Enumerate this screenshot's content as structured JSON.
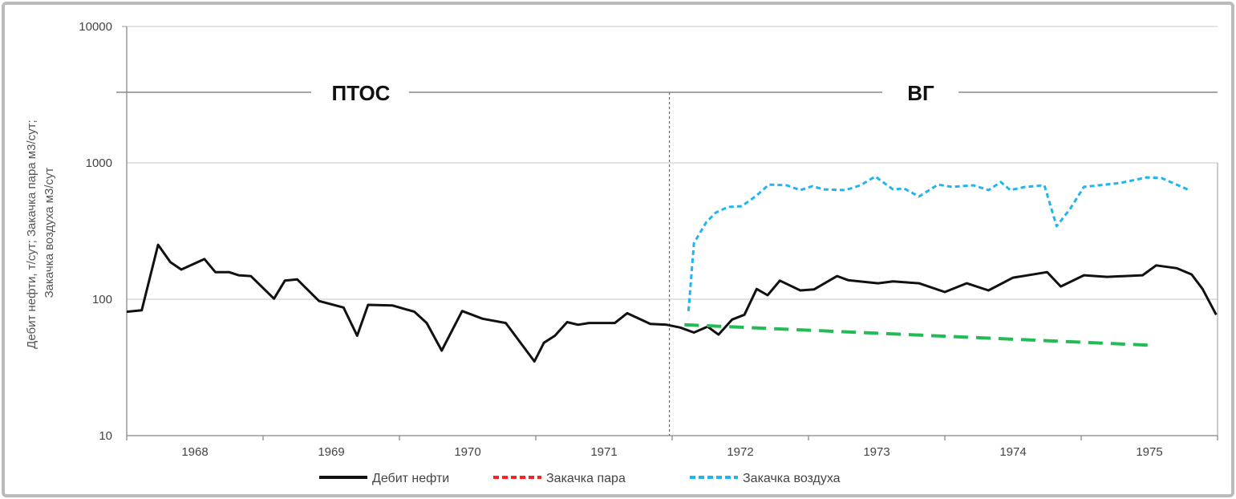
{
  "chart_data": {
    "type": "line",
    "title": "",
    "xlabel": "",
    "ylabel_lines": [
      "Дебит нефти, т/сут; Закачка пара м3/сут;",
      "Закачка воздуха м3/сут"
    ],
    "yscale": "log",
    "ylim": [
      10,
      10000
    ],
    "yticks": [
      "10",
      "100",
      "1000",
      "10000"
    ],
    "xlim": [
      1968,
      1976
    ],
    "xticks": [
      "1968",
      "1969",
      "1970",
      "1971",
      "1972",
      "1973",
      "1974",
      "1975"
    ],
    "grid": "horizontal",
    "legend_placement": "bottom",
    "phases": [
      {
        "label": "ПТОС",
        "from": 1968,
        "to": 1971.98
      },
      {
        "label": "ВГ",
        "from": 1971.98,
        "to": 1976
      }
    ],
    "phase_divider_year": 1971.98,
    "series": [
      {
        "name": "Дебит нефти",
        "color": "#111111",
        "style": "solid",
        "in_legend": true,
        "x": [
          1968.0,
          1968.11,
          1968.23,
          1968.32,
          1968.4,
          1968.57,
          1968.65,
          1968.75,
          1968.82,
          1968.91,
          1969.08,
          1969.16,
          1969.25,
          1969.41,
          1969.59,
          1969.69,
          1969.77,
          1969.95,
          1970.11,
          1970.2,
          1970.31,
          1970.46,
          1970.61,
          1970.78,
          1970.99,
          1971.06,
          1971.14,
          1971.23,
          1971.31,
          1971.39,
          1971.58,
          1971.67,
          1971.84,
          1971.96,
          1972.06,
          1972.16,
          1972.26,
          1972.34,
          1972.44,
          1972.53,
          1972.62,
          1972.7,
          1972.79,
          1972.94,
          1973.04,
          1973.21,
          1973.29,
          1973.51,
          1973.62,
          1973.81,
          1974.0,
          1974.16,
          1974.32,
          1974.5,
          1974.75,
          1974.85,
          1975.02,
          1975.19,
          1975.45,
          1975.55,
          1975.7,
          1975.81,
          1975.89,
          1975.99
        ],
        "values": [
          81,
          83,
          251,
          187,
          165,
          197,
          158,
          158,
          150,
          148,
          101,
          137,
          140,
          97,
          87,
          54,
          91,
          90,
          81,
          67,
          42,
          82,
          72,
          67,
          35,
          48,
          54,
          68,
          65,
          67,
          67,
          79,
          66,
          65,
          62,
          57,
          63,
          55,
          71,
          77,
          119,
          107,
          137,
          116,
          118,
          148,
          138,
          131,
          135,
          131,
          113,
          131,
          116,
          144,
          158,
          124,
          150,
          146,
          150,
          177,
          169,
          152,
          119,
          77
        ]
      },
      {
        "name": "Закачка пара",
        "color": "#ff2020",
        "style": "dashed",
        "in_legend": true,
        "x": [],
        "values": []
      },
      {
        "name": "Закачка воздуха",
        "color": "#22b4f0",
        "style": "dashed",
        "in_legend": true,
        "x": [
          1972.12,
          1972.16,
          1972.25,
          1972.32,
          1972.41,
          1972.51,
          1972.61,
          1972.71,
          1972.84,
          1972.94,
          1973.03,
          1973.11,
          1973.27,
          1973.38,
          1973.49,
          1973.62,
          1973.7,
          1973.81,
          1973.95,
          1974.05,
          1974.21,
          1974.32,
          1974.41,
          1974.48,
          1974.59,
          1974.73,
          1974.82,
          1974.92,
          1975.02,
          1975.13,
          1975.29,
          1975.48,
          1975.59,
          1975.78
        ],
        "values": [
          82,
          258,
          367,
          432,
          475,
          481,
          566,
          693,
          684,
          631,
          675,
          639,
          631,
          684,
          794,
          639,
          649,
          566,
          693,
          667,
          684,
          631,
          723,
          631,
          667,
          684,
          343,
          462,
          667,
          684,
          713,
          783,
          773,
          639
        ]
      },
      {
        "name": "trend",
        "color": "#22bb55",
        "style": "long-dash",
        "in_legend": false,
        "x": [
          1972.09,
          1975.5
        ],
        "values": [
          65,
          46
        ]
      }
    ]
  }
}
